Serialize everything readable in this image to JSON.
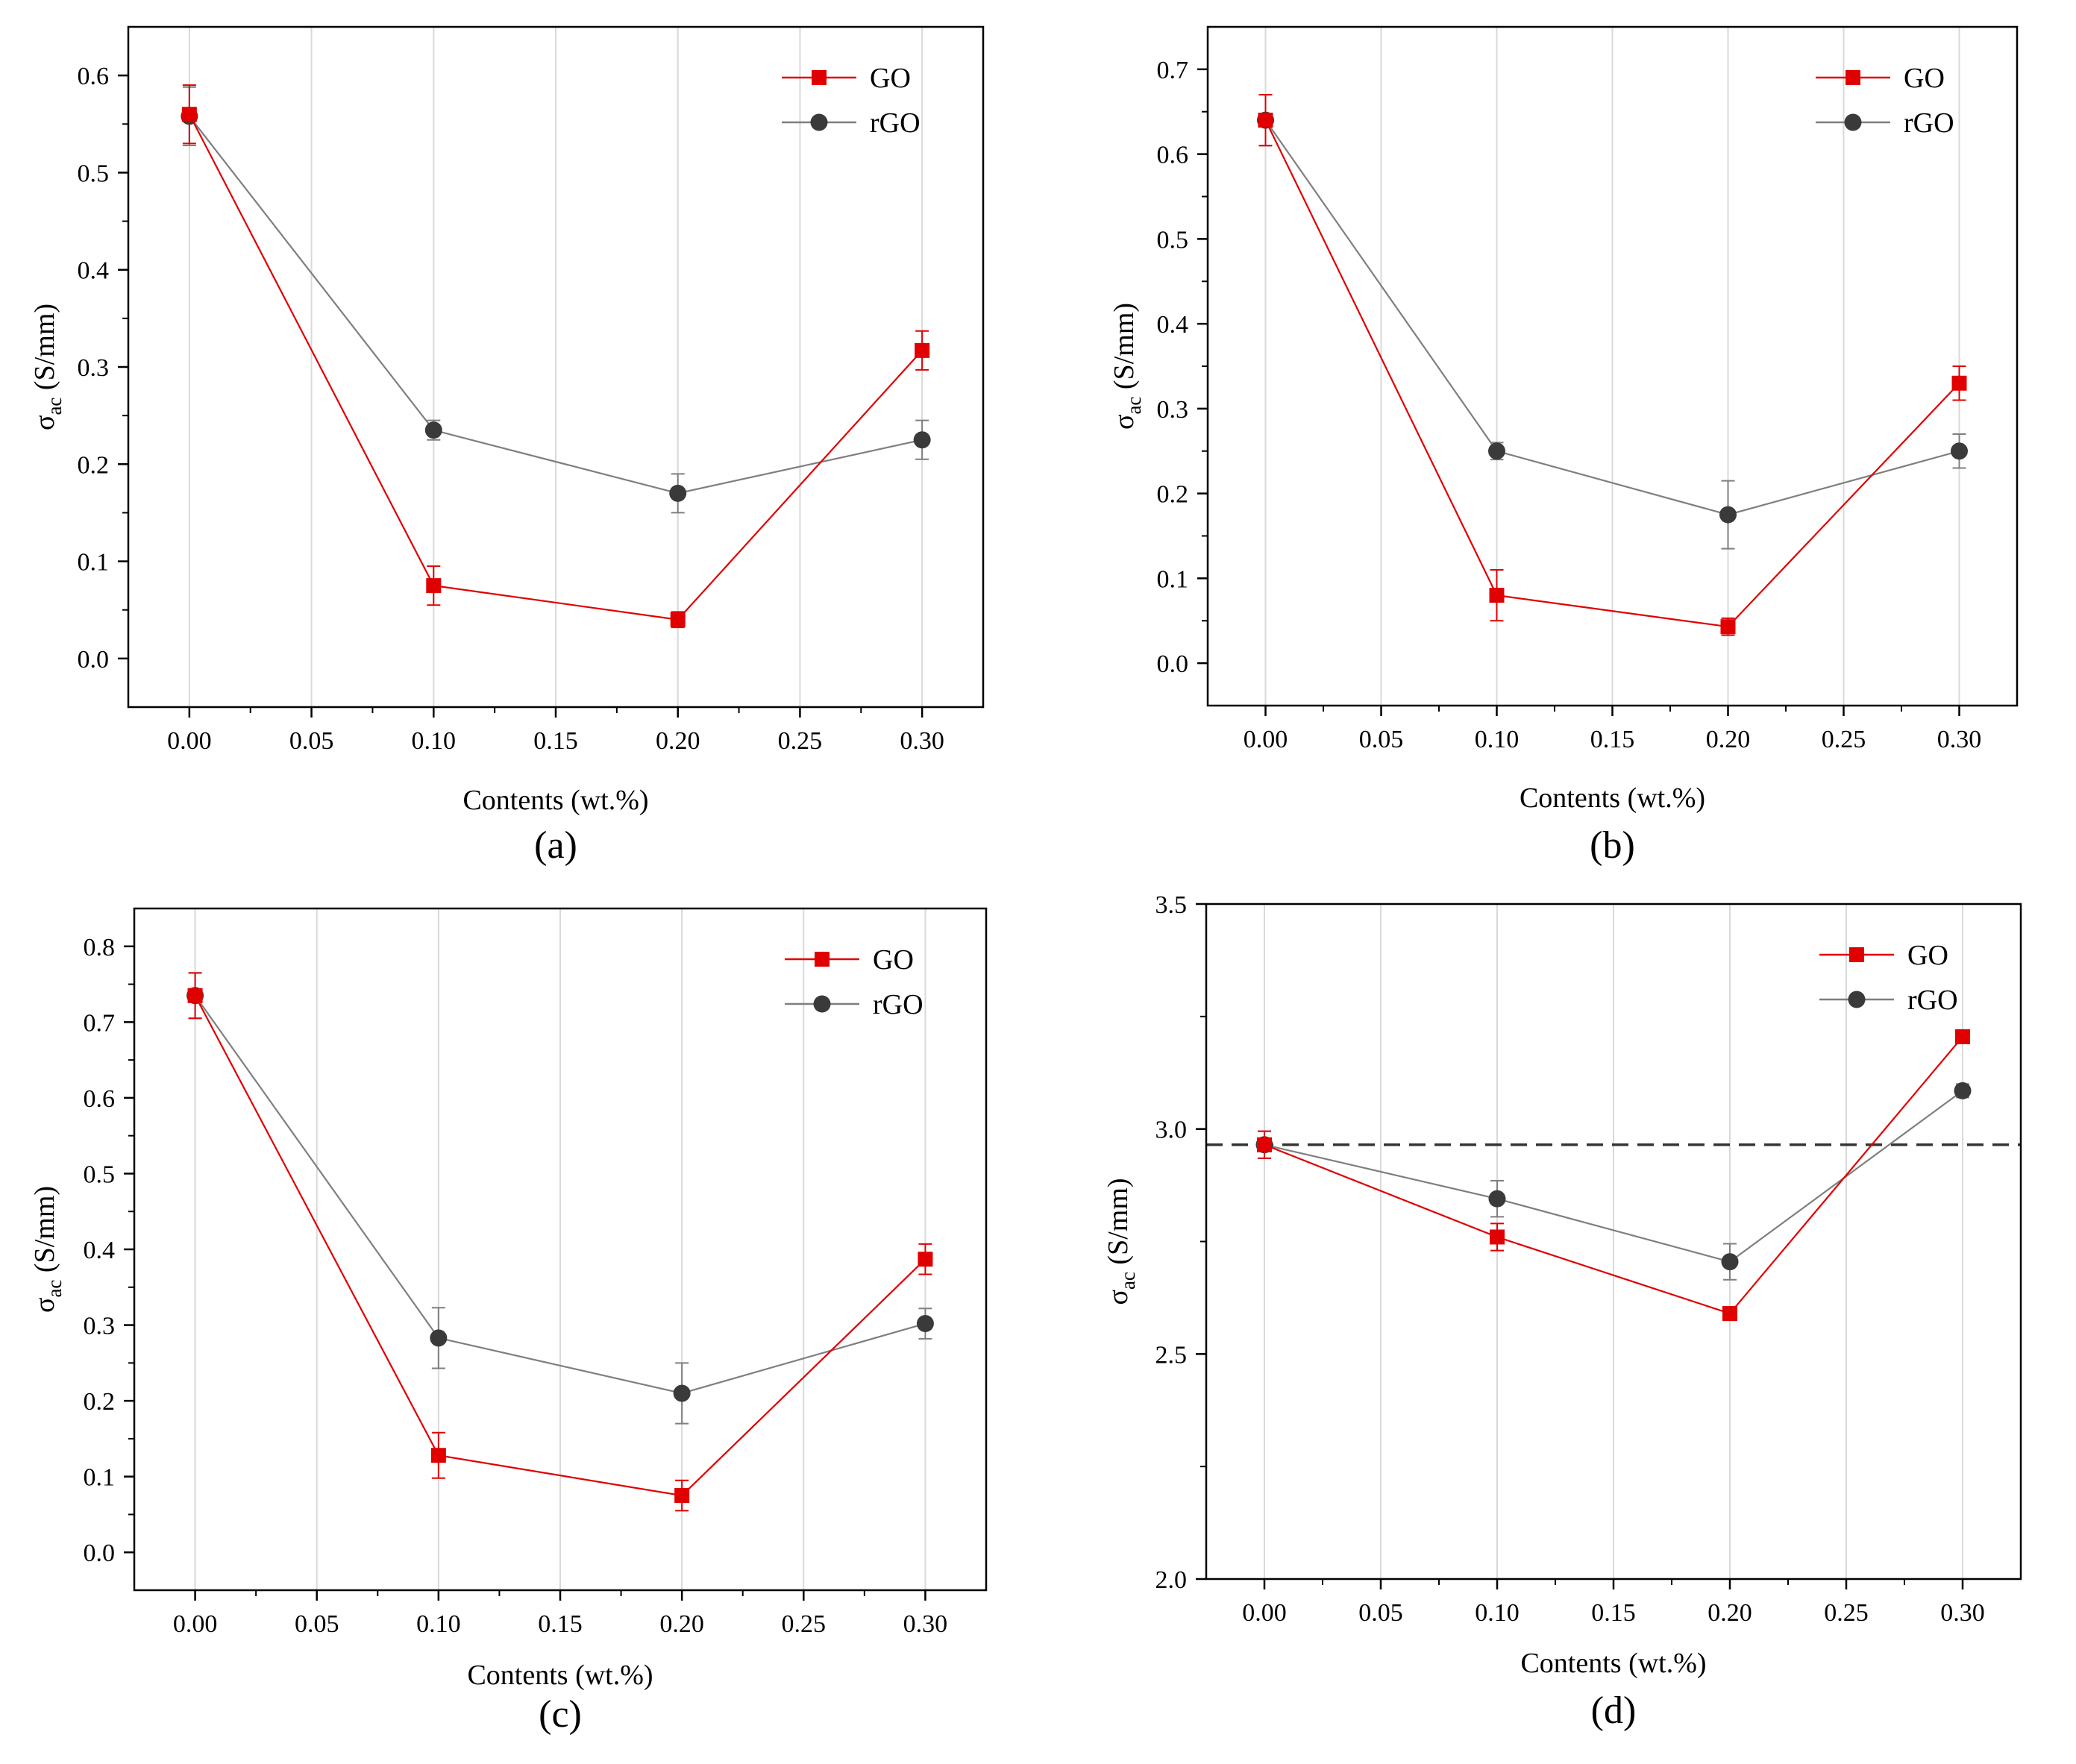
{
  "chart_data": [
    {
      "type": "line",
      "panel_label": "(a)",
      "x_tick_labels": [
        "0.00",
        "0.05",
        "0.10",
        "0.15",
        "0.20",
        "0.25",
        "0.30"
      ],
      "y_tick_labels": [
        "0.0",
        "0.1",
        "0.2",
        "0.3",
        "0.4",
        "0.5",
        "0.6"
      ],
      "xlim": [
        -0.025,
        0.325
      ],
      "ylim": [
        -0.05,
        0.65
      ],
      "x_ticks": [
        0,
        0.05,
        0.1,
        0.15,
        0.2,
        0.25,
        0.3
      ],
      "y_ticks": [
        0,
        0.1,
        0.2,
        0.3,
        0.4,
        0.5,
        0.6
      ],
      "xlabel": "Contents (wt.%)",
      "ylabel_symbol": "σ",
      "ylabel_sub": "ac",
      "ylabel_unit": " (S/mm)",
      "legend_position": "top-right",
      "grid": "vertical",
      "x": [
        0.0,
        0.1,
        0.2,
        0.3
      ],
      "series": [
        {
          "name": "GO",
          "marker": "square",
          "color": "#e00000",
          "values": [
            0.56,
            0.075,
            0.04,
            0.317
          ],
          "errors": [
            0.03,
            0.02,
            0.008,
            0.02
          ]
        },
        {
          "name": "rGO",
          "marker": "circle",
          "color": "#7f7f7f",
          "values": [
            0.558,
            0.235,
            0.17,
            0.225
          ],
          "errors": [
            0.03,
            0.01,
            0.02,
            0.02
          ]
        }
      ]
    },
    {
      "type": "line",
      "panel_label": "(b)",
      "x_tick_labels": [
        "0.00",
        "0.05",
        "0.10",
        "0.15",
        "0.20",
        "0.25",
        "0.30"
      ],
      "y_tick_labels": [
        "0.0",
        "0.1",
        "0.2",
        "0.3",
        "0.4",
        "0.5",
        "0.6",
        "0.7"
      ],
      "xlim": [
        -0.025,
        0.325
      ],
      "ylim": [
        -0.05,
        0.75
      ],
      "x_ticks": [
        0,
        0.05,
        0.1,
        0.15,
        0.2,
        0.25,
        0.3
      ],
      "y_ticks": [
        0,
        0.1,
        0.2,
        0.3,
        0.4,
        0.5,
        0.6,
        0.7
      ],
      "xlabel": "Contents (wt.%)",
      "ylabel_symbol": "σ",
      "ylabel_sub": "ac",
      "ylabel_unit": " (S/mm)",
      "legend_position": "top-right",
      "grid": "vertical",
      "x": [
        0.0,
        0.1,
        0.2,
        0.3
      ],
      "series": [
        {
          "name": "GO",
          "marker": "square",
          "color": "#e00000",
          "values": [
            0.64,
            0.08,
            0.043,
            0.33
          ],
          "errors": [
            0.03,
            0.03,
            0.01,
            0.02
          ]
        },
        {
          "name": "rGO",
          "marker": "circle",
          "color": "#7f7f7f",
          "values": [
            0.64,
            0.25,
            0.175,
            0.25
          ],
          "errors": [
            0.03,
            0.01,
            0.04,
            0.02
          ]
        }
      ]
    },
    {
      "type": "line",
      "panel_label": "(c)",
      "x_tick_labels": [
        "0.00",
        "0.05",
        "0.10",
        "0.15",
        "0.20",
        "0.25",
        "0.30"
      ],
      "y_tick_labels": [
        "0.0",
        "0.1",
        "0.2",
        "0.3",
        "0.4",
        "0.5",
        "0.6",
        "0.7",
        "0.8"
      ],
      "xlim": [
        -0.025,
        0.325
      ],
      "ylim": [
        -0.05,
        0.85
      ],
      "x_ticks": [
        0,
        0.05,
        0.1,
        0.15,
        0.2,
        0.25,
        0.3
      ],
      "y_ticks": [
        0,
        0.1,
        0.2,
        0.3,
        0.4,
        0.5,
        0.6,
        0.7,
        0.8
      ],
      "xlabel": "Contents (wt.%)",
      "ylabel_symbol": "σ",
      "ylabel_sub": "ac",
      "ylabel_unit": " (S/mm)",
      "legend_position": "top-right",
      "grid": "vertical",
      "x": [
        0.0,
        0.1,
        0.2,
        0.3
      ],
      "series": [
        {
          "name": "GO",
          "marker": "square",
          "color": "#e00000",
          "values": [
            0.735,
            0.128,
            0.075,
            0.387
          ],
          "errors": [
            0.03,
            0.03,
            0.02,
            0.02
          ]
        },
        {
          "name": "rGO",
          "marker": "circle",
          "color": "#7f7f7f",
          "values": [
            0.735,
            0.283,
            0.21,
            0.302
          ],
          "errors": [
            0.03,
            0.04,
            0.04,
            0.02
          ]
        }
      ]
    },
    {
      "type": "line",
      "panel_label": "(d)",
      "x_tick_labels": [
        "0.00",
        "0.05",
        "0.10",
        "0.15",
        "0.20",
        "0.25",
        "0.30"
      ],
      "y_tick_labels": [
        "2.0",
        "2.5",
        "3.0",
        "3.5"
      ],
      "xlim": [
        -0.025,
        0.325
      ],
      "ylim": [
        2.0,
        3.5
      ],
      "x_ticks": [
        0,
        0.05,
        0.1,
        0.15,
        0.2,
        0.25,
        0.3
      ],
      "y_ticks": [
        2.0,
        2.5,
        3.0,
        3.5
      ],
      "xlabel": "Contents (wt.%)",
      "ylabel_symbol": "σ",
      "ylabel_sub": "ac",
      "ylabel_unit": " (S/mm)",
      "legend_position": "top-right",
      "grid": "vertical",
      "reference_line": 2.965,
      "x": [
        0.0,
        0.1,
        0.2,
        0.3
      ],
      "series": [
        {
          "name": "GO",
          "marker": "square",
          "color": "#e00000",
          "values": [
            2.965,
            2.76,
            2.59,
            3.205
          ],
          "errors": [
            0.03,
            0.03,
            0.015,
            0.015
          ]
        },
        {
          "name": "rGO",
          "marker": "circle",
          "color": "#7f7f7f",
          "values": [
            2.965,
            2.845,
            2.705,
            3.085
          ],
          "errors": [
            0.03,
            0.04,
            0.04,
            0.015
          ]
        }
      ]
    }
  ]
}
